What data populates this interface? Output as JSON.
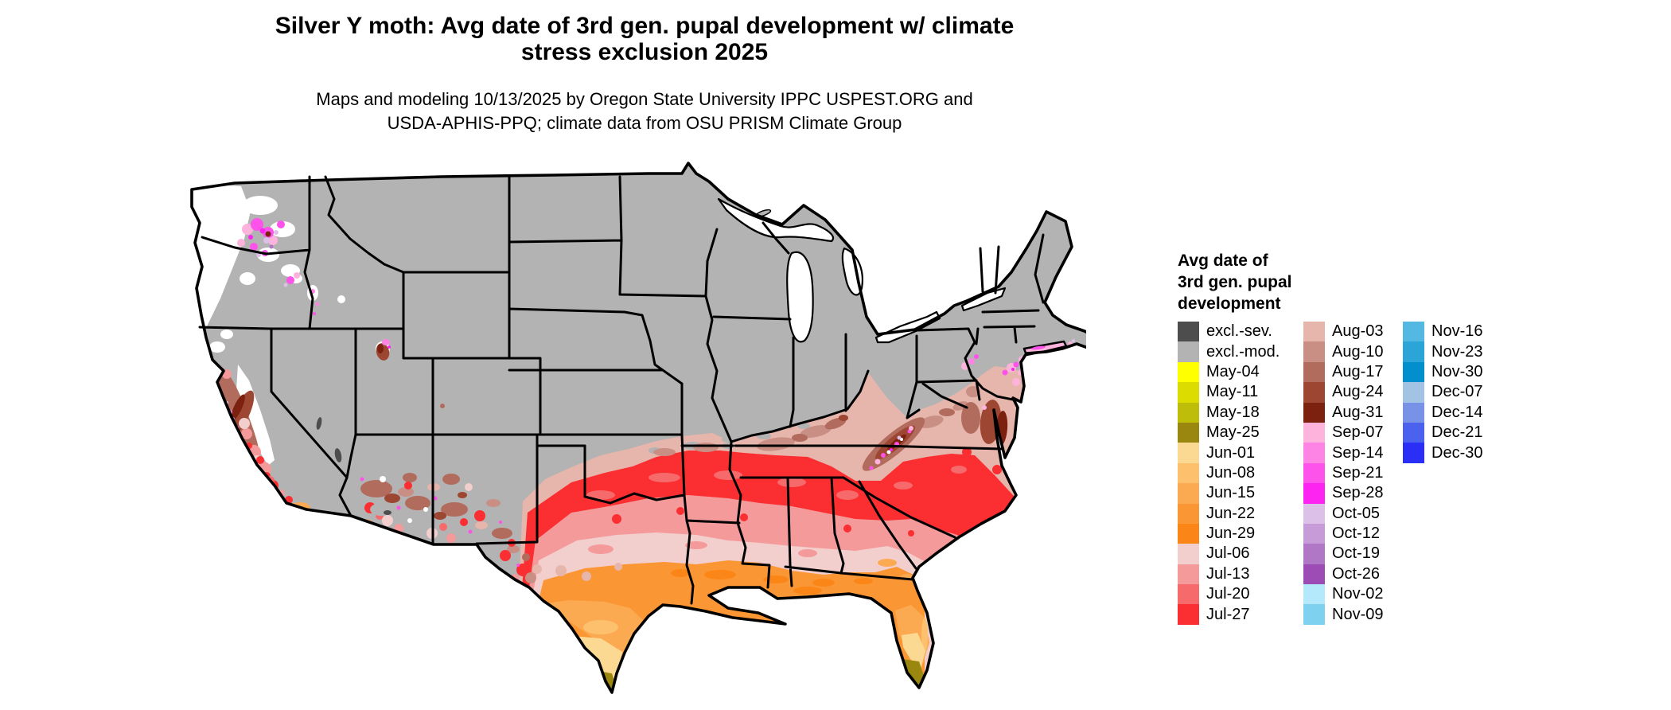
{
  "title_line1": "Silver Y moth: Avg date of 3rd gen. pupal development w/ climate",
  "title_line2": "stress exclusion 2025",
  "subtitle_line1": "Maps and modeling 10/13/2025 by Oregon State University IPPC USPEST.ORG and",
  "subtitle_line2": "USDA-APHIS-PPQ; climate data from OSU PRISM Climate Group",
  "legend": {
    "title_line1": "Avg date of",
    "title_line2": "3rd gen. pupal",
    "title_line3": "development",
    "columns": [
      [
        {
          "label": "excl.-sev.",
          "color": "#4d4d4d"
        },
        {
          "label": "excl.-mod.",
          "color": "#b3b3b3"
        },
        {
          "label": "May-04",
          "color": "#ffff00"
        },
        {
          "label": "May-11",
          "color": "#dcdc00"
        },
        {
          "label": "May-18",
          "color": "#bdbd0a"
        },
        {
          "label": "May-25",
          "color": "#9a8710"
        },
        {
          "label": "Jun-01",
          "color": "#fcd992"
        },
        {
          "label": "Jun-08",
          "color": "#fdc06d"
        },
        {
          "label": "Jun-15",
          "color": "#fcaa51"
        },
        {
          "label": "Jun-22",
          "color": "#fb9634"
        },
        {
          "label": "Jun-29",
          "color": "#fb8617"
        },
        {
          "label": "Jul-06",
          "color": "#f2cecd"
        },
        {
          "label": "Jul-13",
          "color": "#f49a9a"
        },
        {
          "label": "Jul-20",
          "color": "#f76a6c"
        },
        {
          "label": "Jul-27",
          "color": "#fb2e31"
        }
      ],
      [
        {
          "label": "Aug-03",
          "color": "#e6b5ab"
        },
        {
          "label": "Aug-10",
          "color": "#c98f85"
        },
        {
          "label": "Aug-17",
          "color": "#b26c5e"
        },
        {
          "label": "Aug-24",
          "color": "#9d4632"
        },
        {
          "label": "Aug-31",
          "color": "#7c2110"
        },
        {
          "label": "Sep-07",
          "color": "#fdb3dc"
        },
        {
          "label": "Sep-14",
          "color": "#fd84e4"
        },
        {
          "label": "Sep-21",
          "color": "#fd53ea"
        },
        {
          "label": "Sep-28",
          "color": "#fd24f1"
        },
        {
          "label": "Oct-05",
          "color": "#dcc0e8"
        },
        {
          "label": "Oct-12",
          "color": "#c79bd8"
        },
        {
          "label": "Oct-19",
          "color": "#b177c7"
        },
        {
          "label": "Oct-26",
          "color": "#9d4cb5"
        },
        {
          "label": "Nov-02",
          "color": "#b3e9fb"
        },
        {
          "label": "Nov-09",
          "color": "#7ed1ef"
        }
      ],
      [
        {
          "label": "Nov-16",
          "color": "#54b9e2"
        },
        {
          "label": "Nov-23",
          "color": "#2ba5d8"
        },
        {
          "label": "Nov-30",
          "color": "#038fce"
        },
        {
          "label": "Dec-07",
          "color": "#a3c3e4"
        },
        {
          "label": "Dec-14",
          "color": "#7892e8"
        },
        {
          "label": "Dec-21",
          "color": "#4a62ee"
        },
        {
          "label": "Dec-30",
          "color": "#2b2ff5"
        }
      ]
    ]
  },
  "map": {
    "excluded_fill": "#b3b3b3",
    "no_data_fill": "#ffffff",
    "state_border_color": "#000000",
    "background": "#ffffff"
  }
}
